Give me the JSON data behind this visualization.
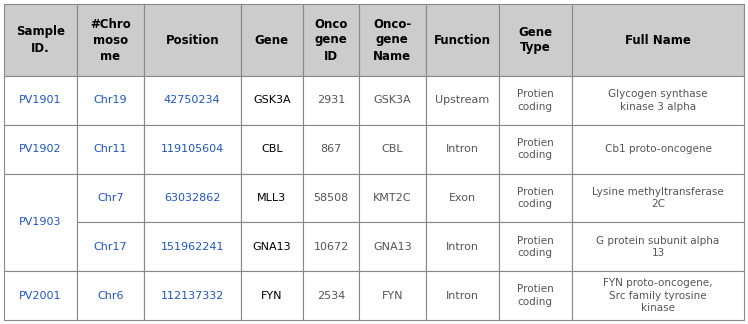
{
  "header_row": [
    "Sample\nID.",
    "#Chro\nmoso\nme",
    "Position",
    "Gene",
    "Onco\ngene\nID",
    "Onco-\ngene\nName",
    "Function",
    "Gene\nType",
    "Full Name"
  ],
  "rows": [
    {
      "sample": "PV1901",
      "chr": "Chr19",
      "position": "42750234",
      "gene": "GSK3A",
      "onco_id": "2931",
      "onco_name": "GSK3A",
      "function": "Upstream",
      "gene_type": "Protien\ncoding",
      "full_name": "Glycogen synthase\nkinase 3 alpha",
      "span": 1
    },
    {
      "sample": "PV1902",
      "chr": "Chr11",
      "position": "119105604",
      "gene": "CBL",
      "onco_id": "867",
      "onco_name": "CBL",
      "function": "Intron",
      "gene_type": "Protien\ncoding",
      "full_name": "Cb1 proto-oncogene",
      "span": 1
    },
    {
      "sample": "PV1903",
      "chr": "Chr7",
      "position": "63032862",
      "gene": "MLL3",
      "onco_id": "58508",
      "onco_name": "KMT2C",
      "function": "Exon",
      "gene_type": "Protien\ncoding",
      "full_name": "Lysine methyltransferase\n2C",
      "span": 2,
      "sub_row": {
        "chr": "Chr17",
        "position": "151962241",
        "gene": "GNA13",
        "onco_id": "10672",
        "onco_name": "GNA13",
        "function": "Intron",
        "gene_type": "Protien\ncoding",
        "full_name": "G protein subunit alpha\n13"
      }
    },
    {
      "sample": "PV2001",
      "chr": "Chr6",
      "position": "112137332",
      "gene": "FYN",
      "onco_id": "2534",
      "onco_name": "FYN",
      "function": "Intron",
      "gene_type": "Protien\ncoding",
      "full_name": "FYN proto-oncogene,\nSrc family tyrosine\nkinase",
      "span": 1
    }
  ],
  "header_bg": "#cccccc",
  "row_bg": "#ffffff",
  "border_color": "#888888",
  "header_text_color": "#000000",
  "sample_text_color": "#2255bb",
  "chr_text_color": "#2255bb",
  "position_text_color": "#2255bb",
  "gene_text_color": "#000000",
  "gene_type_text_color": "#555555",
  "data_text_color": "#555555",
  "fig_width": 7.48,
  "fig_height": 3.24,
  "dpi": 100
}
